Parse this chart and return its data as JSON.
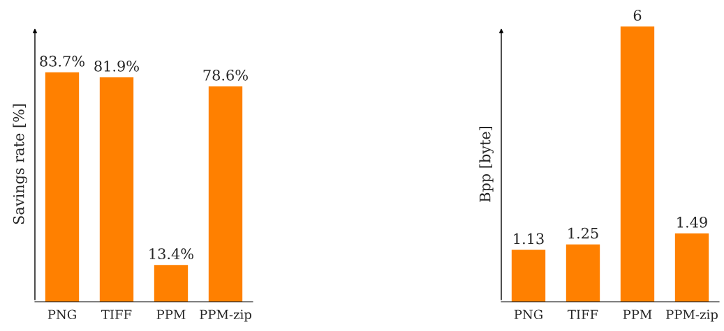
{
  "chart_data": [
    {
      "type": "bar",
      "ylabel": "Savings rate [%]",
      "categories": [
        "PNG",
        "TIFF",
        "PPM",
        "PPM-zip"
      ],
      "values": [
        83.7,
        81.9,
        13.4,
        78.6
      ],
      "value_labels": [
        "83.7%",
        "81.9%",
        "13.4%",
        "78.6%"
      ],
      "color": "#ff8000"
    },
    {
      "type": "bar",
      "ylabel": "Bpp [byte]",
      "categories": [
        "PNG",
        "TIFF",
        "PPM",
        "PPM-zip"
      ],
      "values": [
        1.13,
        1.25,
        6,
        1.49
      ],
      "data_labels": true,
      "color": "#ff8000",
      "ylim": [
        0,
        6
      ]
    }
  ]
}
